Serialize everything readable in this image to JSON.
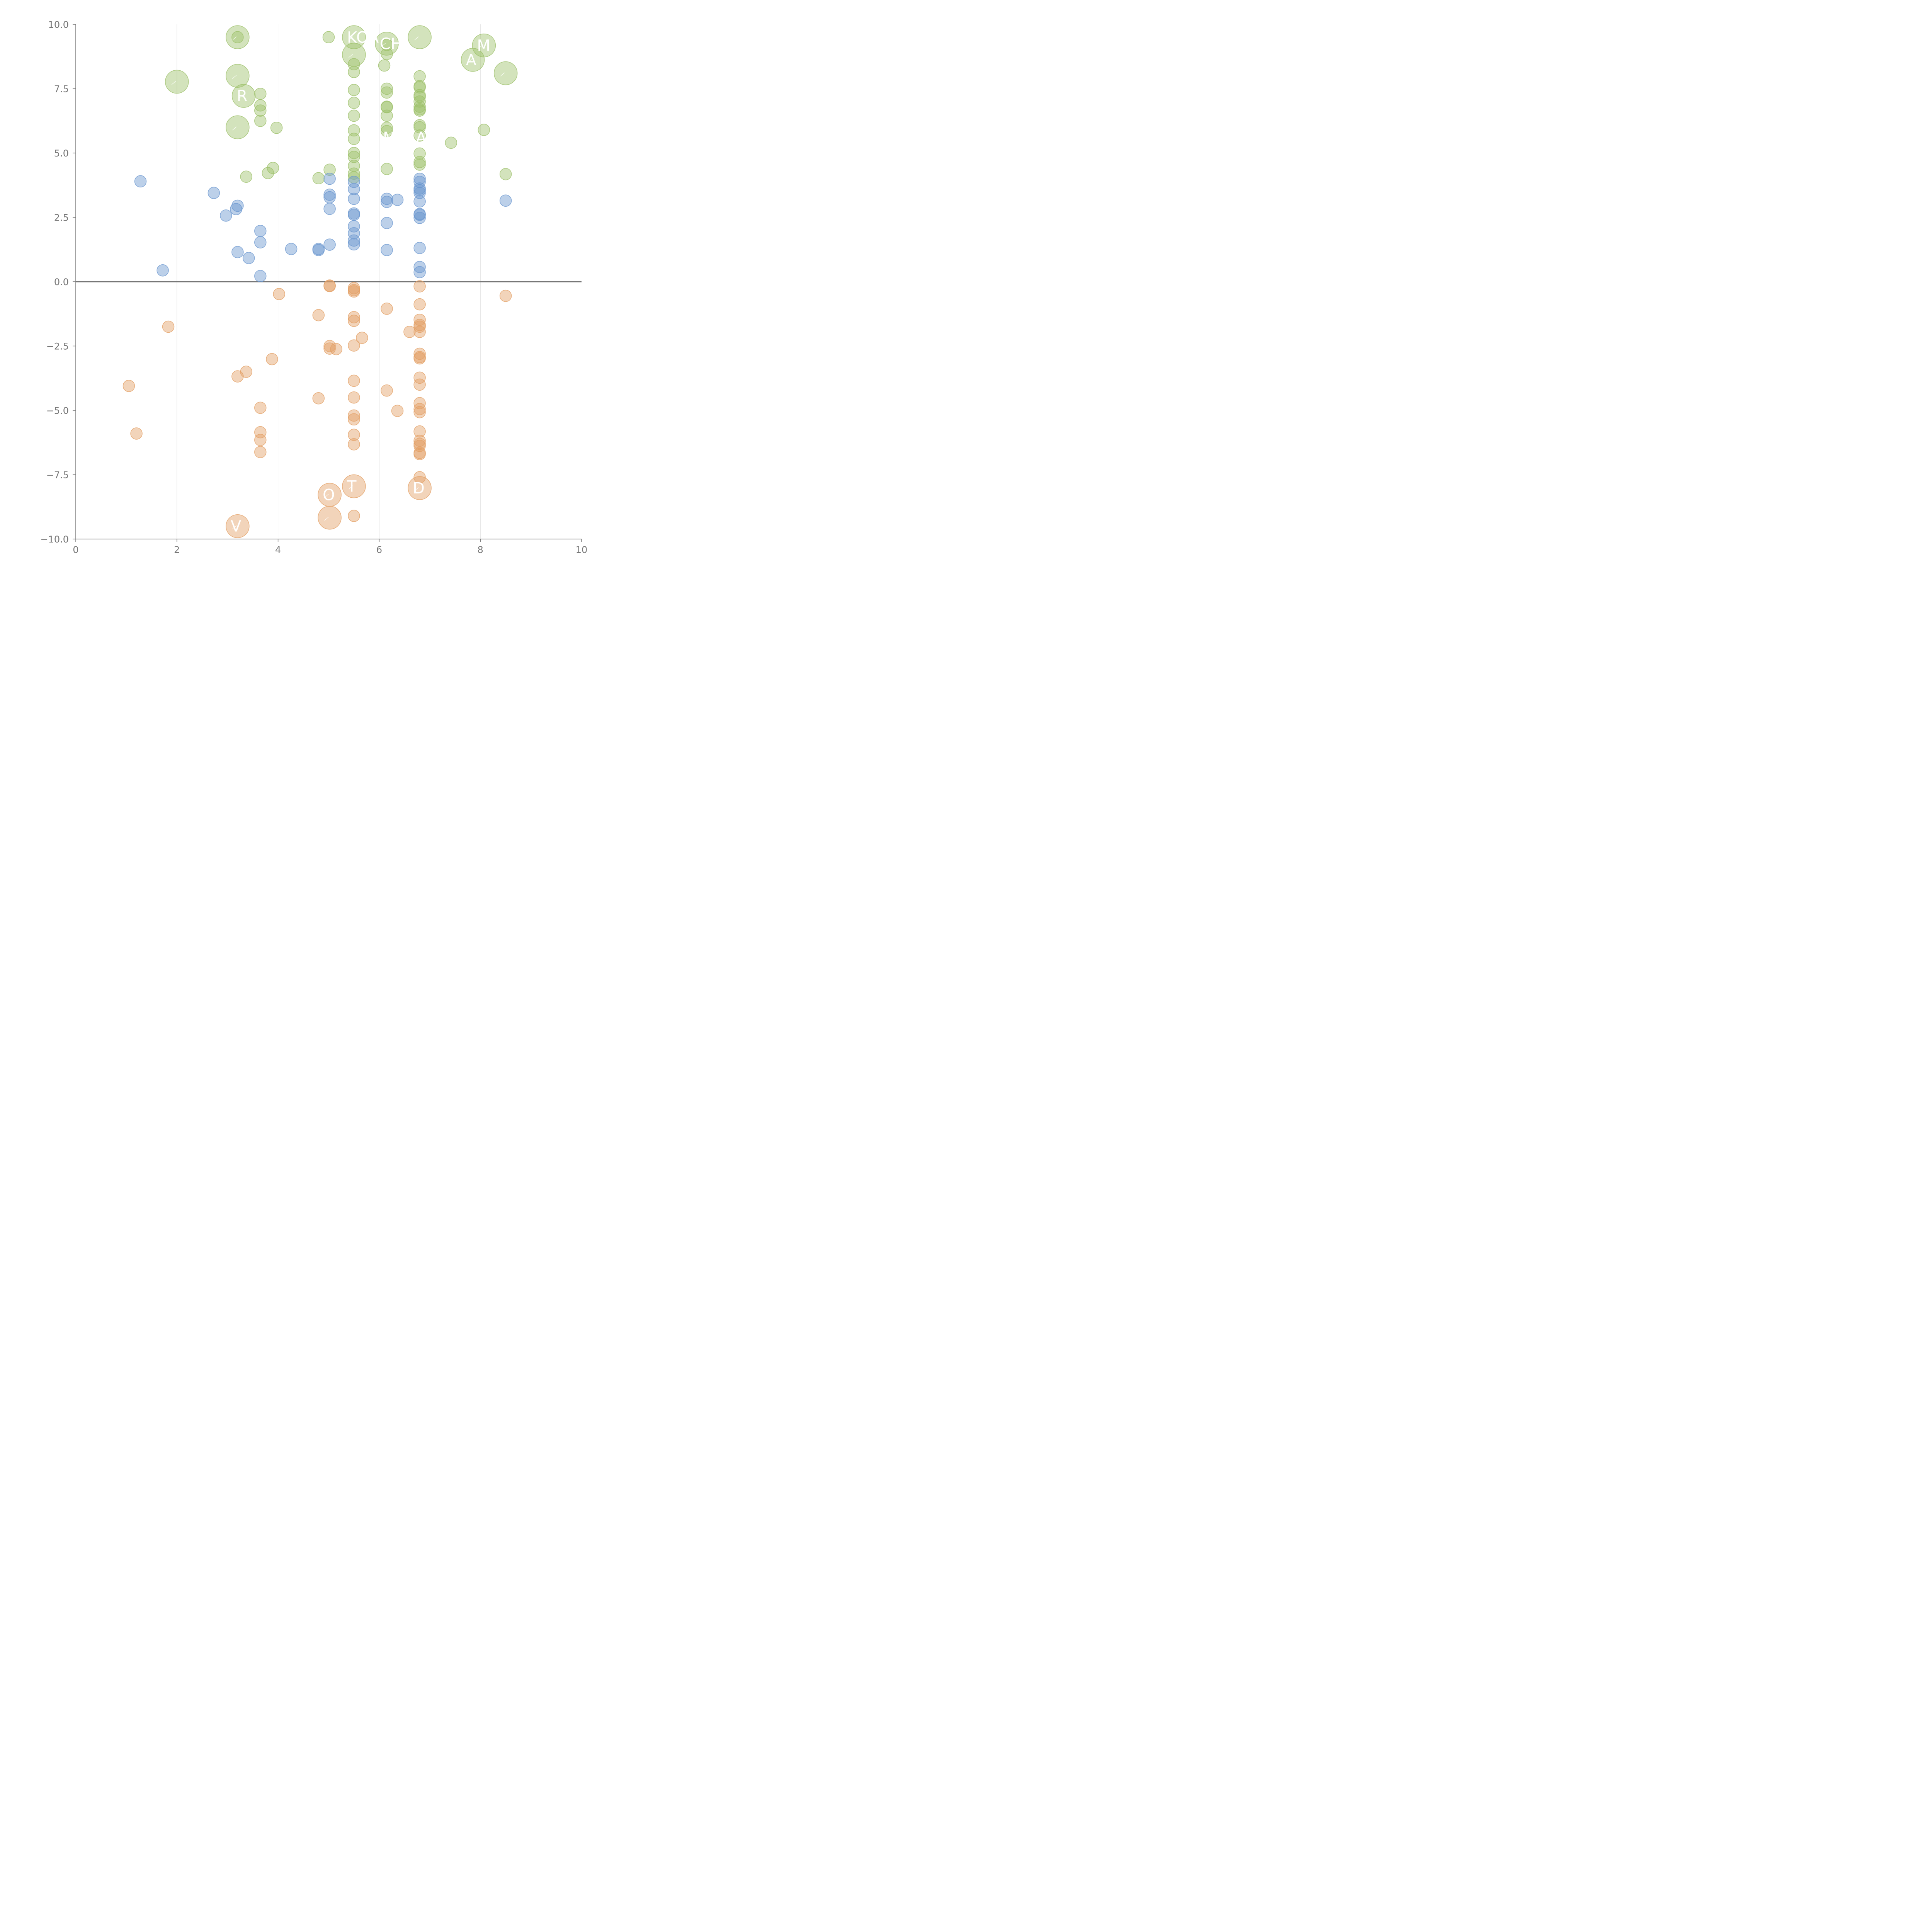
{
  "chart_data": {
    "type": "scatter",
    "title": "",
    "xlabel": "",
    "ylabel": "",
    "xlim": [
      0,
      10
    ],
    "ylim": [
      -10,
      10
    ],
    "x_ticks": [
      "0",
      "2",
      "4",
      "6",
      "8",
      "10"
    ],
    "y_ticks": [
      "10.0",
      "7.5",
      "5.0",
      "2.5",
      "0.0",
      "−2.5",
      "−5.0",
      "−7.5",
      "−10.0"
    ],
    "colors": {
      "green": "#9dc16a",
      "blue": "#6b97cf",
      "orange": "#e3a065"
    },
    "series": [
      {
        "name": "green",
        "color": "green",
        "points": [
          [
            3.2,
            9.5
          ],
          [
            5.0,
            9.5
          ],
          [
            6.15,
            9.2
          ],
          [
            6.15,
            8.85
          ],
          [
            6.1,
            8.4
          ],
          [
            5.5,
            8.45
          ],
          [
            5.5,
            8.15
          ],
          [
            3.65,
            7.3
          ],
          [
            3.65,
            6.85
          ],
          [
            3.65,
            6.65
          ],
          [
            3.65,
            6.25
          ],
          [
            3.97,
            5.98
          ],
          [
            5.5,
            7.45
          ],
          [
            5.5,
            6.95
          ],
          [
            5.5,
            6.45
          ],
          [
            5.5,
            5.88
          ],
          [
            5.5,
            5.55
          ],
          [
            5.5,
            5.0
          ],
          [
            5.5,
            4.85
          ],
          [
            5.5,
            4.5
          ],
          [
            5.5,
            4.2
          ],
          [
            5.5,
            4.05
          ],
          [
            6.15,
            7.5
          ],
          [
            6.15,
            7.35
          ],
          [
            6.15,
            6.8
          ],
          [
            6.15,
            6.78
          ],
          [
            6.15,
            6.45
          ],
          [
            6.15,
            5.98
          ],
          [
            6.15,
            5.85
          ],
          [
            6.15,
            4.38
          ],
          [
            6.8,
            7.98
          ],
          [
            6.8,
            7.6
          ],
          [
            6.8,
            7.55
          ],
          [
            6.8,
            7.25
          ],
          [
            6.8,
            7.18
          ],
          [
            6.8,
            7.0
          ],
          [
            6.8,
            6.8
          ],
          [
            6.8,
            6.7
          ],
          [
            6.8,
            6.65
          ],
          [
            6.8,
            6.08
          ],
          [
            6.8,
            6.0
          ],
          [
            6.8,
            5.68
          ],
          [
            6.8,
            4.98
          ],
          [
            6.8,
            4.65
          ],
          [
            6.8,
            4.55
          ],
          [
            5.02,
            4.35
          ],
          [
            4.8,
            4.02
          ],
          [
            3.9,
            4.42
          ],
          [
            3.8,
            4.22
          ],
          [
            3.37,
            4.08
          ],
          [
            7.42,
            5.4
          ],
          [
            8.07,
            5.9
          ],
          [
            8.5,
            4.18
          ]
        ]
      },
      {
        "name": "blue",
        "color": "blue",
        "points": [
          [
            1.28,
            3.9
          ],
          [
            2.73,
            3.45
          ],
          [
            3.2,
            2.95
          ],
          [
            3.17,
            2.82
          ],
          [
            2.97,
            2.57
          ],
          [
            3.65,
            1.97
          ],
          [
            3.65,
            1.53
          ],
          [
            3.2,
            1.15
          ],
          [
            3.42,
            0.92
          ],
          [
            1.72,
            0.44
          ],
          [
            3.65,
            0.22
          ],
          [
            4.26,
            1.27
          ],
          [
            4.8,
            1.27
          ],
          [
            4.8,
            1.23
          ],
          [
            5.02,
            1.44
          ],
          [
            5.02,
            4.0
          ],
          [
            5.02,
            3.38
          ],
          [
            5.02,
            3.28
          ],
          [
            5.02,
            2.83
          ],
          [
            5.5,
            3.88
          ],
          [
            5.5,
            3.6
          ],
          [
            5.5,
            3.22
          ],
          [
            5.5,
            2.65
          ],
          [
            5.5,
            2.6
          ],
          [
            5.5,
            2.15
          ],
          [
            5.5,
            1.88
          ],
          [
            5.5,
            1.6
          ],
          [
            5.5,
            1.45
          ],
          [
            6.15,
            3.22
          ],
          [
            6.15,
            3.1
          ],
          [
            6.36,
            3.18
          ],
          [
            6.15,
            2.28
          ],
          [
            6.15,
            1.23
          ],
          [
            6.8,
            4.0
          ],
          [
            6.8,
            3.88
          ],
          [
            6.8,
            3.62
          ],
          [
            6.8,
            3.55
          ],
          [
            6.8,
            3.45
          ],
          [
            6.8,
            3.12
          ],
          [
            6.8,
            2.63
          ],
          [
            6.8,
            2.6
          ],
          [
            6.8,
            2.48
          ],
          [
            6.8,
            1.31
          ],
          [
            6.8,
            0.57
          ],
          [
            6.8,
            0.37
          ],
          [
            8.5,
            3.15
          ]
        ]
      },
      {
        "name": "orange",
        "color": "orange",
        "points": [
          [
            1.83,
            -1.75
          ],
          [
            1.05,
            -4.05
          ],
          [
            1.2,
            -5.9
          ],
          [
            3.2,
            -3.68
          ],
          [
            3.37,
            -3.5
          ],
          [
            3.88,
            -3.01
          ],
          [
            4.02,
            -0.48
          ],
          [
            3.65,
            -4.9
          ],
          [
            3.65,
            -5.85
          ],
          [
            3.65,
            -6.15
          ],
          [
            3.65,
            -6.62
          ],
          [
            4.8,
            -1.3
          ],
          [
            4.8,
            -4.53
          ],
          [
            5.02,
            -0.15
          ],
          [
            5.02,
            -0.17
          ],
          [
            5.02,
            -2.5
          ],
          [
            5.02,
            -2.6
          ],
          [
            5.15,
            -2.62
          ],
          [
            5.5,
            -0.25
          ],
          [
            5.5,
            -0.33
          ],
          [
            5.5,
            -0.38
          ],
          [
            5.5,
            -1.38
          ],
          [
            5.5,
            -1.52
          ],
          [
            5.5,
            -2.48
          ],
          [
            5.5,
            -3.85
          ],
          [
            5.5,
            -4.5
          ],
          [
            5.5,
            -5.2
          ],
          [
            5.5,
            -5.35
          ],
          [
            5.5,
            -5.95
          ],
          [
            5.5,
            -6.32
          ],
          [
            5.5,
            -9.1
          ],
          [
            5.66,
            -2.18
          ],
          [
            6.15,
            -1.05
          ],
          [
            6.15,
            -4.23
          ],
          [
            6.36,
            -5.02
          ],
          [
            6.6,
            -1.95
          ],
          [
            6.8,
            -0.18
          ],
          [
            6.8,
            -0.88
          ],
          [
            6.8,
            -1.48
          ],
          [
            6.8,
            -1.68
          ],
          [
            6.8,
            -1.75
          ],
          [
            6.8,
            -1.95
          ],
          [
            6.8,
            -2.8
          ],
          [
            6.8,
            -2.93
          ],
          [
            6.8,
            -2.98
          ],
          [
            6.8,
            -3.73
          ],
          [
            6.8,
            -4.0
          ],
          [
            6.8,
            -4.72
          ],
          [
            6.8,
            -4.95
          ],
          [
            6.8,
            -5.07
          ],
          [
            6.8,
            -5.82
          ],
          [
            6.8,
            -6.18
          ],
          [
            6.8,
            -6.3
          ],
          [
            6.8,
            -6.38
          ],
          [
            6.8,
            -6.65
          ],
          [
            6.8,
            -6.7
          ],
          [
            6.8,
            -7.6
          ],
          [
            8.5,
            -0.55
          ]
        ]
      }
    ],
    "large_points": [
      {
        "x": 3.2,
        "y": 9.5,
        "size": 2,
        "color": "green",
        "label": ""
      },
      {
        "x": 5.5,
        "y": 9.5,
        "size": 2,
        "color": "green",
        "label": "KOA"
      },
      {
        "x": 6.15,
        "y": 9.25,
        "size": 2,
        "color": "green",
        "label": "CH"
      },
      {
        "x": 6.8,
        "y": 9.5,
        "size": 2,
        "color": "green",
        "label": ""
      },
      {
        "x": 8.07,
        "y": 9.18,
        "size": 2,
        "color": "green",
        "label": "M"
      },
      {
        "x": 5.5,
        "y": 8.82,
        "size": 2,
        "color": "green",
        "label": ""
      },
      {
        "x": 7.85,
        "y": 8.62,
        "size": 2,
        "color": "green",
        "label": "A"
      },
      {
        "x": 8.5,
        "y": 8.1,
        "size": 2,
        "color": "green",
        "label": ""
      },
      {
        "x": 2.0,
        "y": 7.77,
        "size": 2,
        "color": "green",
        "label": ""
      },
      {
        "x": 3.2,
        "y": 8.0,
        "size": 2,
        "color": "green",
        "label": ""
      },
      {
        "x": 3.32,
        "y": 7.22,
        "size": 2,
        "color": "green",
        "label": "R"
      },
      {
        "x": 3.2,
        "y": 6.0,
        "size": 2,
        "color": "green",
        "label": ""
      },
      {
        "x": 5.5,
        "y": -7.95,
        "size": 2,
        "color": "orange",
        "label": "T"
      },
      {
        "x": 5.02,
        "y": -8.28,
        "size": 2,
        "color": "orange",
        "label": "O"
      },
      {
        "x": 6.8,
        "y": -8.02,
        "size": 2,
        "color": "orange",
        "label": "D"
      },
      {
        "x": 5.02,
        "y": -9.17,
        "size": 2,
        "color": "orange",
        "label": ""
      },
      {
        "x": 3.2,
        "y": -9.5,
        "size": 2,
        "color": "orange",
        "label": "V"
      }
    ],
    "stray_labels": [
      {
        "x": 6.15,
        "y": 5.6,
        "text": "M"
      },
      {
        "x": 6.8,
        "y": 5.6,
        "text": "A"
      }
    ],
    "zero_line": 0,
    "grid": "vertical"
  }
}
